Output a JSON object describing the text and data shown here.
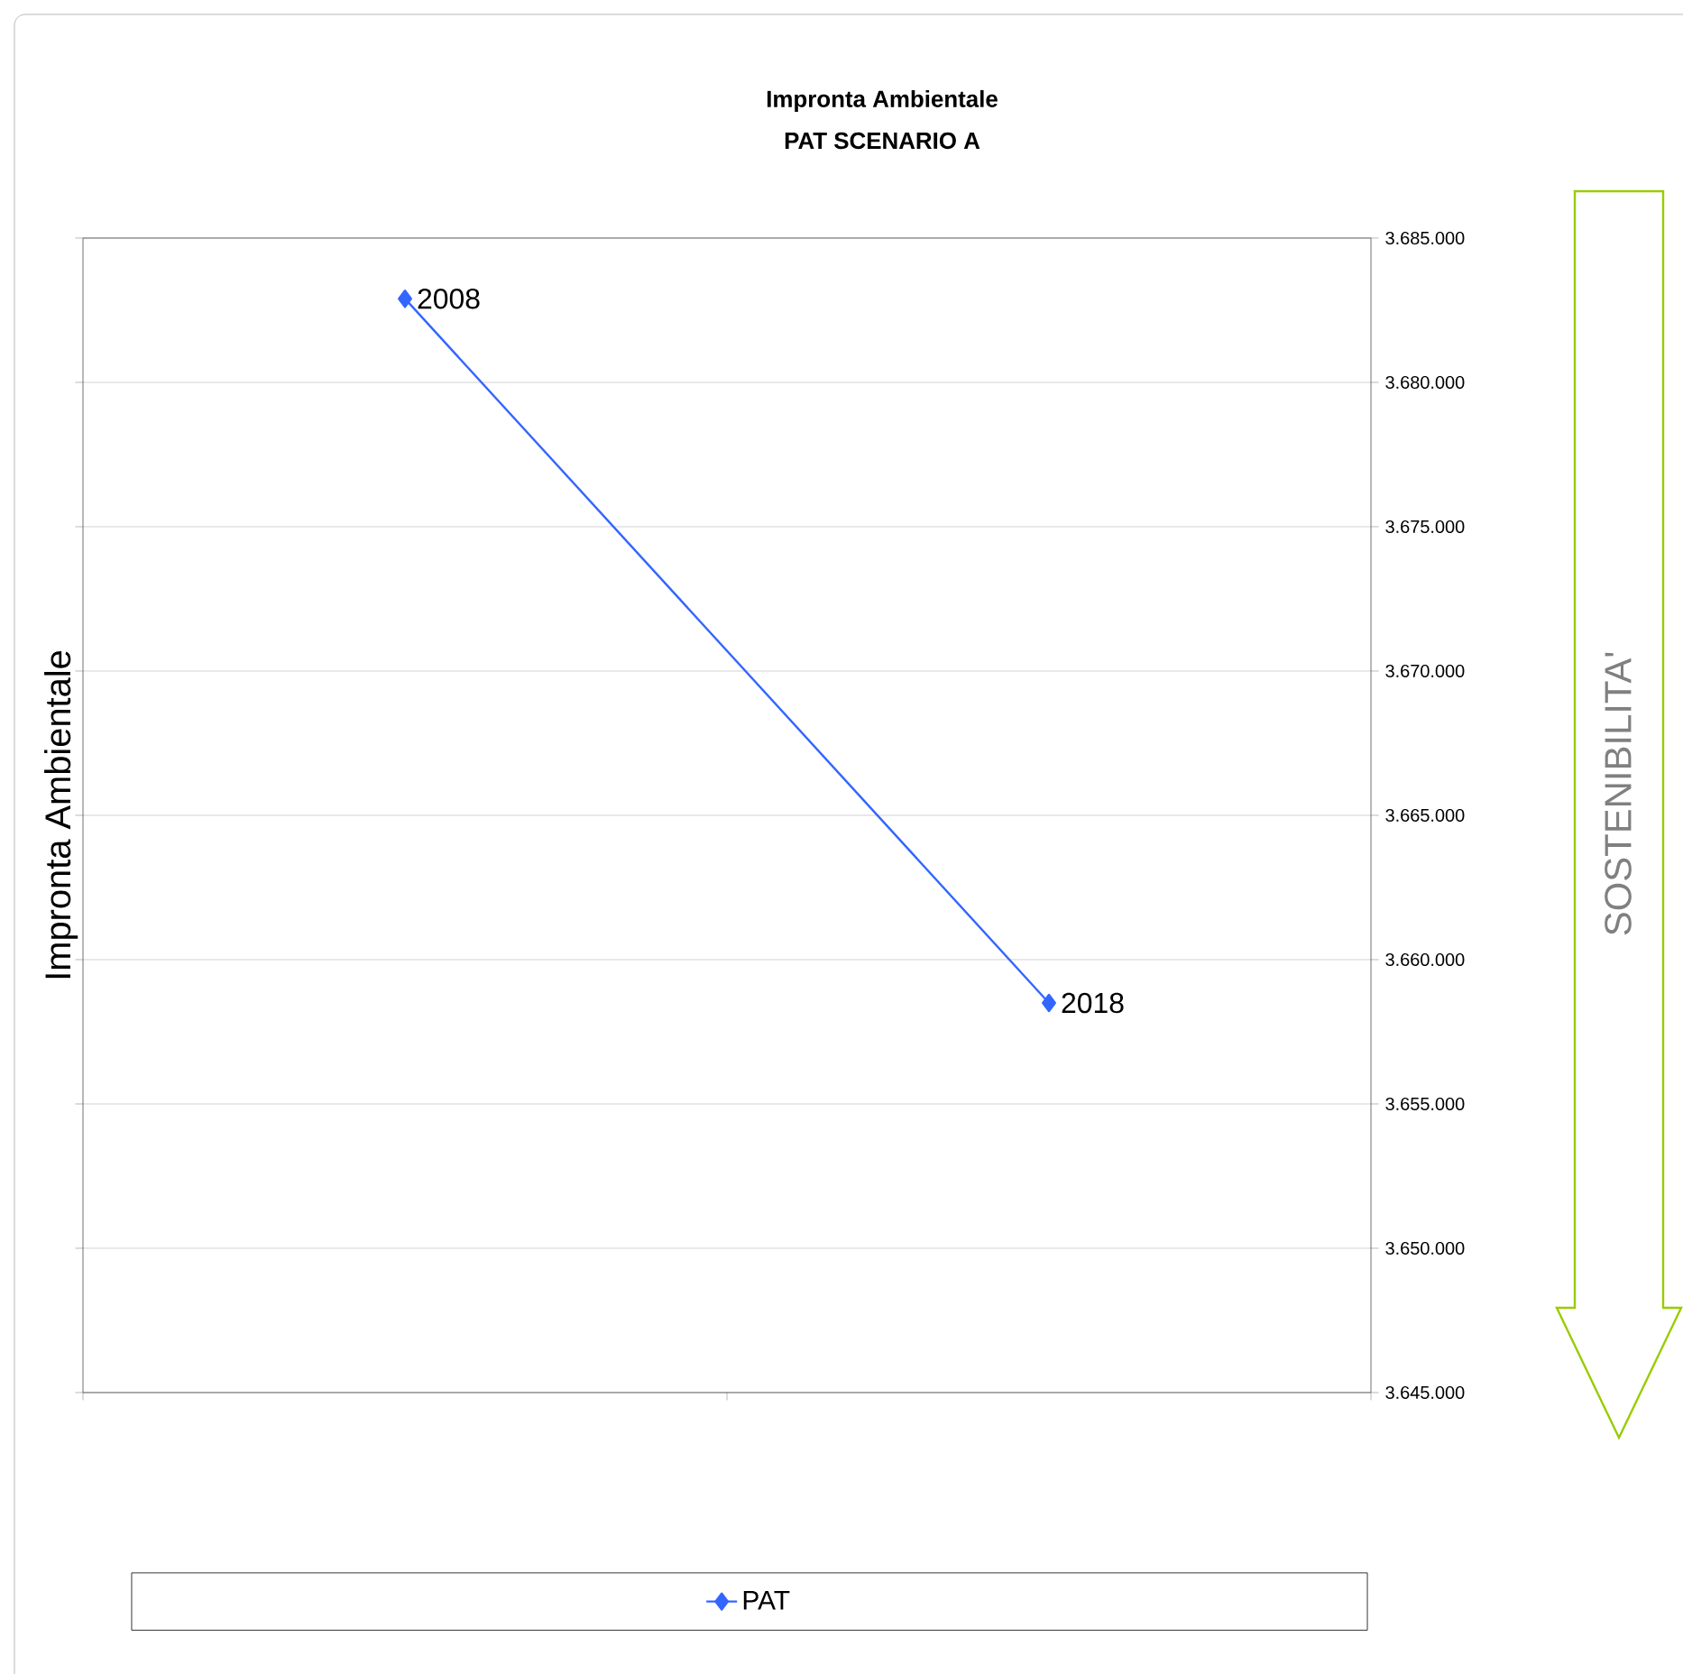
{
  "chart_data": {
    "type": "line",
    "title": "Impronta Ambientale",
    "subtitle": "PAT SCENARIO A",
    "ylabel": "Impronta Ambientale",
    "categories": [
      "2008",
      "2018"
    ],
    "series": [
      {
        "name": "PAT",
        "color": "#3366ff",
        "values": [
          3682900,
          3658500
        ]
      }
    ],
    "ylim": [
      3645000,
      3685000
    ],
    "yticks": [
      {
        "value": 3645000,
        "label": "3.645.000"
      },
      {
        "value": 3650000,
        "label": "3.650.000"
      },
      {
        "value": 3655000,
        "label": "3.655.000"
      },
      {
        "value": 3660000,
        "label": "3.660.000"
      },
      {
        "value": 3665000,
        "label": "3.665.000"
      },
      {
        "value": 3670000,
        "label": "3.670.000"
      },
      {
        "value": 3675000,
        "label": "3.675.000"
      },
      {
        "value": 3680000,
        "label": "3.680.000"
      },
      {
        "value": 3685000,
        "label": "3.685.000"
      }
    ],
    "annotations": [
      "SOSTENIBILITA'"
    ],
    "tick_labels": "y",
    "grid": "y",
    "legend": "bottom",
    "marker": "diamond",
    "line_style": "solid"
  }
}
